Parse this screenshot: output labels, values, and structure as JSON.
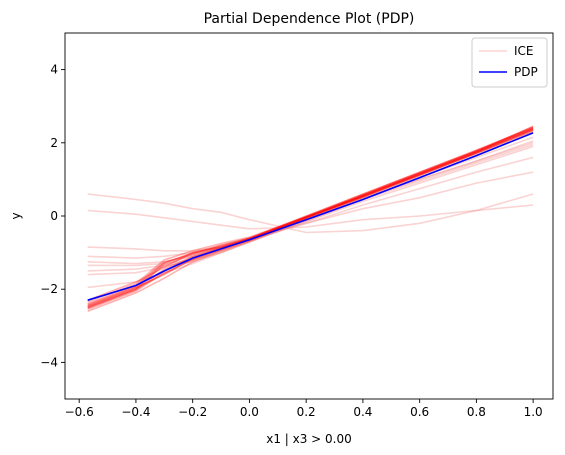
{
  "chart_data": {
    "type": "line",
    "title": "Partial Dependence Plot (PDP)",
    "xlabel": "x1 | x3 > 0.00",
    "ylabel": "y",
    "xlim": [
      -0.65,
      1.07
    ],
    "ylim": [
      -5,
      5
    ],
    "x_ticks": [
      -0.6,
      -0.4,
      -0.2,
      0.0,
      0.2,
      0.4,
      0.6,
      0.8,
      1.0
    ],
    "x_tick_labels": [
      "−0.6",
      "−0.4",
      "−0.2",
      "0.0",
      "0.2",
      "0.4",
      "0.6",
      "0.8",
      "1.0"
    ],
    "y_ticks": [
      -4,
      -2,
      0,
      2,
      4
    ],
    "y_tick_labels": [
      "−4",
      "−2",
      "0",
      "2",
      "4"
    ],
    "grid": false,
    "legend": {
      "placement": "top-right",
      "entries": [
        "ICE",
        "PDP"
      ]
    },
    "colors": {
      "ice_dense": "#ff0000",
      "ice_faint": "#f08080",
      "pdp": "#0000ff"
    },
    "x": [
      -0.57,
      -0.4,
      -0.3,
      -0.2,
      -0.1,
      0.0,
      0.2,
      0.4,
      0.6,
      0.8,
      1.0
    ],
    "series": [
      {
        "name": "PDP",
        "role": "pdp",
        "values": [
          -2.3,
          -1.9,
          -1.5,
          -1.15,
          -0.9,
          -0.65,
          -0.1,
          0.45,
          1.05,
          1.65,
          2.27
        ]
      }
    ],
    "ice_dense": [
      [
        -2.55,
        -2.05,
        -1.55,
        -1.2,
        -0.9,
        -0.65,
        -0.05,
        0.55,
        1.15,
        1.75,
        2.45
      ],
      [
        -2.45,
        -1.95,
        -1.6,
        -1.15,
        -0.9,
        -0.62,
        -0.02,
        0.58,
        1.18,
        1.78,
        2.4
      ],
      [
        -2.5,
        -2.0,
        -1.3,
        -1.0,
        -0.85,
        -0.65,
        -0.06,
        0.53,
        1.12,
        1.72,
        2.35
      ],
      [
        -2.4,
        -1.9,
        -1.25,
        -1.05,
        -0.8,
        -0.6,
        0.0,
        0.6,
        1.2,
        1.8,
        2.42
      ],
      [
        -2.35,
        -1.85,
        -1.2,
        -0.95,
        -0.75,
        -0.58,
        -0.03,
        0.52,
        1.1,
        1.7,
        2.3
      ],
      [
        -2.5,
        -2.0,
        -1.45,
        -1.1,
        -0.85,
        -0.64,
        -0.04,
        0.56,
        1.16,
        1.76,
        2.38
      ],
      [
        -2.6,
        -2.1,
        -1.7,
        -1.25,
        -0.95,
        -0.68,
        -0.08,
        0.52,
        1.12,
        1.72,
        2.33
      ],
      [
        -2.45,
        -1.95,
        -1.35,
        -1.05,
        -0.88,
        -0.63,
        -0.03,
        0.57,
        1.17,
        1.77,
        2.44
      ],
      [
        -2.3,
        -1.8,
        -1.4,
        -1.0,
        -0.8,
        -0.62,
        -0.02,
        0.55,
        1.14,
        1.74,
        2.36
      ],
      [
        -2.52,
        -2.02,
        -1.5,
        -1.12,
        -0.87,
        -0.66,
        -0.05,
        0.54,
        1.13,
        1.73,
        2.37
      ],
      [
        -2.42,
        -1.92,
        -1.28,
        -1.02,
        -0.83,
        -0.61,
        -0.01,
        0.59,
        1.19,
        1.79,
        2.41
      ],
      [
        -2.48,
        -1.98,
        -1.58,
        -1.18,
        -0.92,
        -0.65,
        -0.05,
        0.55,
        1.15,
        1.75,
        2.39
      ]
    ],
    "ice_faint": [
      [
        0.6,
        0.45,
        0.35,
        0.2,
        0.1,
        -0.1,
        -0.45,
        -0.4,
        -0.2,
        0.15,
        0.6
      ],
      [
        0.15,
        0.05,
        -0.05,
        -0.15,
        -0.25,
        -0.35,
        -0.3,
        -0.1,
        0.0,
        0.15,
        0.3
      ],
      [
        -0.85,
        -0.9,
        -0.95,
        -0.95,
        -0.85,
        -0.6,
        -0.2,
        0.2,
        0.5,
        0.9,
        1.2
      ],
      [
        -1.1,
        -1.15,
        -1.1,
        -1.0,
        -0.85,
        -0.65,
        -0.2,
        0.3,
        0.75,
        1.2,
        1.6
      ],
      [
        -1.25,
        -1.3,
        -1.25,
        -1.1,
        -0.95,
        -0.7,
        -0.15,
        0.4,
        0.9,
        1.4,
        1.9
      ],
      [
        -1.35,
        -1.35,
        -1.3,
        -1.2,
        -1.0,
        -0.72,
        -0.1,
        0.5,
        1.0,
        1.5,
        2.05
      ],
      [
        -1.5,
        -1.45,
        -1.35,
        -1.25,
        -1.0,
        -0.7,
        -0.15,
        0.45,
        0.95,
        1.45,
        1.95
      ],
      [
        -1.6,
        -1.55,
        -1.4,
        -1.2,
        -0.95,
        -0.68,
        -0.12,
        0.48,
        1.0,
        1.5,
        2.0
      ],
      [
        -1.95,
        -1.8,
        -1.55,
        -1.3,
        -1.0,
        -0.7,
        -0.1,
        0.5,
        1.05,
        1.6,
        2.15
      ]
    ]
  }
}
